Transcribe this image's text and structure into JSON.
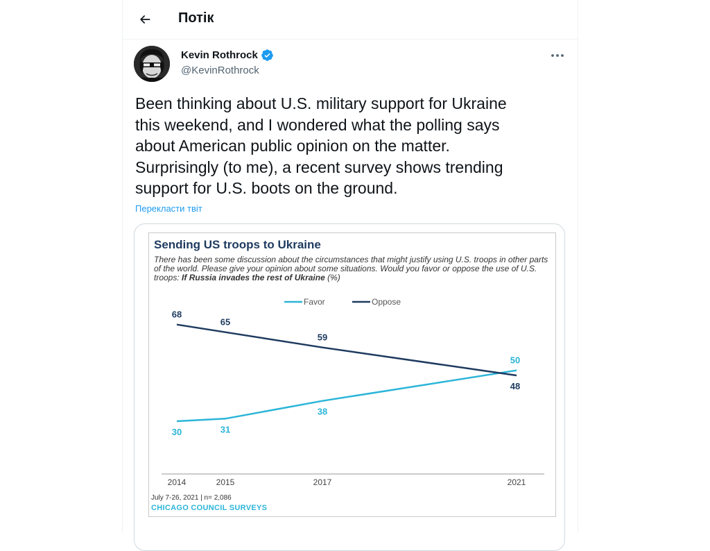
{
  "header": {
    "title": "Потік"
  },
  "tweet": {
    "author_name": "Kevin Rothrock",
    "author_handle": "@KevinRothrock",
    "text": "Been thinking about U.S. military support for Ukraine\nthis weekend, and I wondered what the polling says\nabout American public opinion on the matter.\nSurprisingly (to me), a recent survey shows trending\nsupport for U.S. boots on the ground.",
    "translate_label": "Перекласти твіт"
  },
  "media": {
    "subtitle_main": "There has been some discussion about the circumstances that might justify using U.S. troops in other parts of the world. Please give your opinion about some situations. Would you favor or oppose the use of U.S. troops: ",
    "subtitle_bold": "If Russia invades the rest of Ukraine",
    "subtitle_end": " (%)",
    "footnote": "July 7-26, 2021 | n= 2,086",
    "source": "CHICAGO COUNCIL SURVEYS"
  },
  "chart_data": {
    "type": "line",
    "title": "Sending US troops to Ukraine",
    "x": [
      2014,
      2015,
      2017,
      2021
    ],
    "x_tick_labels": [
      "2014",
      "2015",
      "2017",
      "2021"
    ],
    "series": [
      {
        "name": "Favor",
        "color": "#2bb5d8",
        "values": [
          30,
          31,
          38,
          50
        ]
      },
      {
        "name": "Oppose",
        "color": "#1e3a5f",
        "values": [
          68,
          65,
          59,
          48
        ]
      }
    ],
    "ylim": [
      15,
      75
    ],
    "grid": false,
    "legend_position": "top-center",
    "data_labels": true
  },
  "colors": {
    "accent": "#1d9bf0",
    "text": "#0f1419",
    "secondary_text": "#536471"
  },
  "icons": {
    "back": "arrow-left-icon",
    "verified": "verified-badge-icon",
    "more": "more-horizontal-icon"
  }
}
